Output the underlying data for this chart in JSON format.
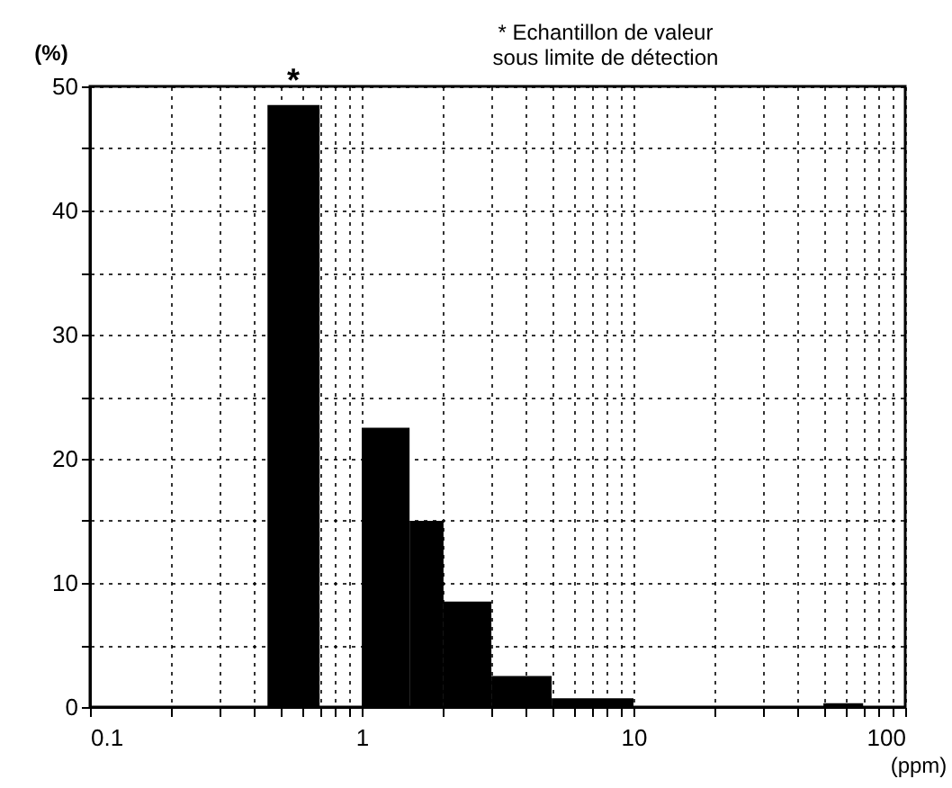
{
  "chart_data": {
    "type": "histogram",
    "ylabel": "(%)",
    "xlabel": "(ppm)",
    "annotations": [
      "* Echantillon de valeur\nsous limite de détection",
      {
        "text": "*",
        "x": 0.56,
        "y": 48.5
      }
    ],
    "bins": [
      0.45,
      0.7,
      1,
      1.5,
      2,
      3,
      5,
      10,
      50,
      70
    ],
    "values": [
      48.5,
      0,
      22.5,
      15,
      8.5,
      2.5,
      0.7,
      0,
      0.3
    ],
    "color": "#000000",
    "log": "x",
    "grid": true,
    "xlim": [
      0.1,
      100
    ],
    "xticks": [
      0.1,
      {
        "value": 0.2,
        "label": null
      },
      {
        "value": 0.3,
        "label": null
      },
      {
        "value": 0.4,
        "label": null
      },
      {
        "value": 0.5,
        "label": null
      },
      {
        "value": 0.6,
        "label": null
      },
      {
        "value": 0.7,
        "label": null
      },
      {
        "value": 0.8,
        "label": null
      },
      {
        "value": 0.9,
        "label": null
      },
      1,
      {
        "value": 2,
        "label": null
      },
      {
        "value": 3,
        "label": null
      },
      {
        "value": 4,
        "label": null
      },
      {
        "value": 5,
        "label": null
      },
      {
        "value": 6,
        "label": null
      },
      {
        "value": 7,
        "label": null
      },
      {
        "value": 8,
        "label": null
      },
      {
        "value": 9,
        "label": null
      },
      10,
      {
        "value": 20,
        "label": null
      },
      {
        "value": 30,
        "label": null
      },
      {
        "value": 40,
        "label": null
      },
      {
        "value": 50,
        "label": null
      },
      {
        "value": 60,
        "label": null
      },
      {
        "value": 70,
        "label": null
      },
      {
        "value": 80,
        "label": null
      },
      {
        "value": 90,
        "label": null
      },
      100
    ],
    "ylim": [
      0,
      50
    ],
    "yticks": [
      0,
      {
        "value": 5,
        "label": null
      },
      10,
      {
        "value": 15,
        "label": null
      },
      20,
      {
        "value": 25,
        "label": null
      },
      30,
      {
        "value": 35,
        "label": null
      },
      40,
      {
        "value": 45,
        "label": null
      },
      50
    ]
  }
}
